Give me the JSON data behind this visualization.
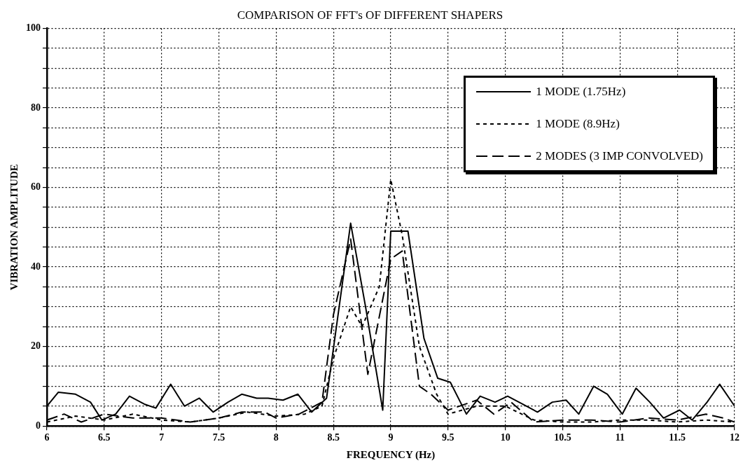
{
  "chart_data": {
    "type": "line",
    "title": "COMPARISON OF FFT's OF DIFFERENT SHAPERS",
    "xlabel": "FREQUENCY (Hz)",
    "ylabel": "VIBRATION AMPLITUDE",
    "xlim": [
      6,
      12
    ],
    "xticks": [
      6,
      6.5,
      7,
      7.5,
      8,
      8.5,
      9,
      9.5,
      10,
      10.5,
      11,
      11.5,
      12
    ],
    "ylim": [
      0,
      100
    ],
    "yticks": [
      0,
      {
        "value": 5,
        "label": null
      },
      {
        "value": 10,
        "label": null
      },
      {
        "value": 15,
        "label": null
      },
      20,
      {
        "value": 25,
        "label": null
      },
      {
        "value": 30,
        "label": null
      },
      {
        "value": 35,
        "label": null
      },
      40,
      {
        "value": 45,
        "label": null
      },
      {
        "value": 50,
        "label": null
      },
      {
        "value": 55,
        "label": null
      },
      60,
      {
        "value": 65,
        "label": null
      },
      {
        "value": 70,
        "label": null
      },
      {
        "value": 75,
        "label": null
      },
      80,
      {
        "value": 85,
        "label": null
      },
      {
        "value": 90,
        "label": null
      },
      {
        "value": 95,
        "label": null
      },
      100
    ],
    "grid": true,
    "legend": "top right",
    "marker": "none",
    "series": [
      {
        "name": "1 MODE (1.75Hz)",
        "color": "#000000",
        "line_style": "solid",
        "x": [
          6,
          6.1,
          6.25,
          6.38,
          6.48,
          6.6,
          6.72,
          6.85,
          6.95,
          7.08,
          7.2,
          7.33,
          7.45,
          7.58,
          7.7,
          7.83,
          7.93,
          8.06,
          8.19,
          8.31,
          8.44,
          8.55,
          8.65,
          8.78,
          8.93,
          9.0,
          9.15,
          9.29,
          9.41,
          9.52,
          9.66,
          9.78,
          9.91,
          10.02,
          10.15,
          10.28,
          10.41,
          10.53,
          10.64,
          10.77,
          10.89,
          11.02,
          11.14,
          11.26,
          11.38,
          11.52,
          11.63,
          11.76,
          11.87,
          12
        ],
        "values": [
          5,
          8.5,
          8,
          6,
          1.5,
          3,
          7.5,
          5.5,
          4.5,
          10.5,
          5,
          7,
          3.5,
          6,
          8,
          7,
          7,
          6.5,
          8,
          3.5,
          7,
          30,
          51,
          30,
          4,
          49,
          49,
          22,
          12,
          11,
          3,
          7.5,
          6,
          7.5,
          5.5,
          3.5,
          6,
          6.5,
          3,
          10,
          8,
          3,
          9.5,
          6,
          2,
          4,
          1.5,
          6,
          10.5,
          5
        ]
      },
      {
        "name": "1 MODE (8.9Hz)",
        "color": "#000000",
        "line_style": "dotted",
        "x": [
          6,
          6.25,
          6.5,
          6.75,
          7,
          7.25,
          7.5,
          7.75,
          8,
          8.25,
          8.4,
          8.5,
          8.65,
          8.75,
          8.9,
          9.0,
          9.1,
          9.25,
          9.4,
          9.5,
          9.75,
          10,
          10.25,
          10.5,
          10.75,
          11,
          11.25,
          11.5,
          11.75,
          12
        ],
        "values": [
          1,
          2.5,
          1.5,
          3,
          1.5,
          1,
          2,
          3.5,
          2.5,
          3,
          5,
          17,
          30,
          25,
          35,
          62,
          48,
          20,
          8,
          3,
          5,
          5,
          1.5,
          1,
          1,
          1.5,
          1.5,
          1,
          1.5,
          1
        ]
      },
      {
        "name": "2 MODES (3 IMP CONVOLVED)",
        "color": "#000000",
        "line_style": "dashed",
        "x": [
          6,
          6.15,
          6.3,
          6.5,
          6.75,
          7,
          7.25,
          7.5,
          7.7,
          7.9,
          8,
          8.2,
          8.4,
          8.5,
          8.65,
          8.8,
          9.0,
          9.1,
          9.25,
          9.35,
          9.5,
          9.75,
          9.9,
          10.05,
          10.25,
          10.5,
          10.75,
          11,
          11.25,
          11.5,
          11.75,
          11.9,
          12
        ],
        "values": [
          1.5,
          3,
          1,
          3,
          2,
          2,
          1,
          2,
          3.5,
          3.5,
          2,
          3,
          6,
          28,
          47,
          13,
          42,
          44,
          10,
          8,
          4,
          6.5,
          3,
          6,
          1,
          1.5,
          1.5,
          1,
          2,
          1.5,
          3,
          2,
          1
        ]
      }
    ]
  }
}
